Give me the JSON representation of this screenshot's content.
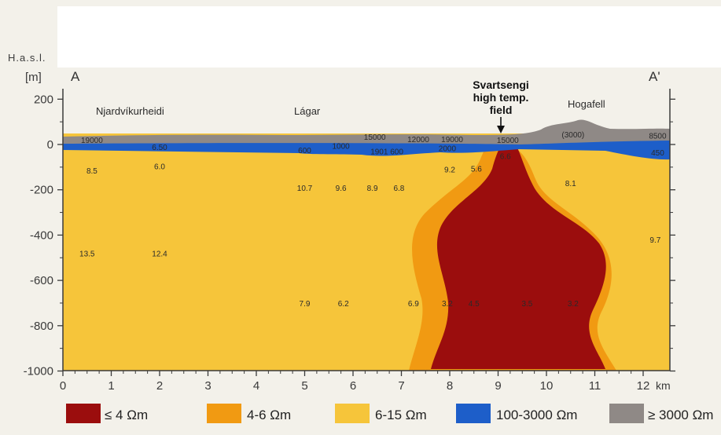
{
  "section": {
    "label_left": "A",
    "label_right": "A'",
    "y_axis_title": "H.a.s.l.",
    "y_axis_unit": "[m]",
    "x_unit": "km",
    "x_ticks": [
      "0",
      "1",
      "2",
      "3",
      "4",
      "5",
      "6",
      "7",
      "8",
      "9",
      "10",
      "11",
      "12"
    ],
    "y_ticks": [
      "200",
      "0",
      "-200",
      "-400",
      "-600",
      "-800",
      "-1000"
    ]
  },
  "annotations": {
    "place_njardvik": "Njardvíkurheidi",
    "place_lagar": "Lágar",
    "place_hogafell": "Hogafell",
    "field_line1": "Svartsengi",
    "field_line2": "high temp.",
    "field_line3": "field"
  },
  "resistivity_values": [
    {
      "text": "19000",
      "x": 0.6,
      "depth": 20
    },
    {
      "text": "6.50",
      "x": 2.0,
      "depth": -10
    },
    {
      "text": "8.5",
      "x": 0.6,
      "depth": -115
    },
    {
      "text": "6.0",
      "x": 2.0,
      "depth": -95
    },
    {
      "text": "600",
      "x": 5.0,
      "depth": -25
    },
    {
      "text": "1000",
      "x": 5.75,
      "depth": -5
    },
    {
      "text": "15000",
      "x": 6.45,
      "depth": 35
    },
    {
      "text": "1901 600",
      "x": 6.7,
      "depth": -30
    },
    {
      "text": "12000",
      "x": 7.35,
      "depth": 25
    },
    {
      "text": "19000",
      "x": 8.05,
      "depth": 25
    },
    {
      "text": "2000",
      "x": 7.95,
      "depth": -15
    },
    {
      "text": "15000",
      "x": 9.2,
      "depth": 20
    },
    {
      "text": "(3000)",
      "x": 10.55,
      "depth": 45
    },
    {
      "text": "8500",
      "x": 12.3,
      "depth": 40
    },
    {
      "text": "450",
      "x": 12.3,
      "depth": -35
    },
    {
      "text": "6.6",
      "x": 9.15,
      "depth": -50
    },
    {
      "text": "9.2",
      "x": 8.0,
      "depth": -110
    },
    {
      "text": "5.6",
      "x": 8.55,
      "depth": -105
    },
    {
      "text": "10.7",
      "x": 5.0,
      "depth": -190
    },
    {
      "text": "9.6",
      "x": 5.75,
      "depth": -190
    },
    {
      "text": "8.9",
      "x": 6.4,
      "depth": -190
    },
    {
      "text": "6.8",
      "x": 6.95,
      "depth": -190
    },
    {
      "text": "8.1",
      "x": 10.5,
      "depth": -170
    },
    {
      "text": "13.5",
      "x": 0.5,
      "depth": -480
    },
    {
      "text": "12.4",
      "x": 2.0,
      "depth": -480
    },
    {
      "text": "9.7",
      "x": 12.25,
      "depth": -420
    },
    {
      "text": "7.9",
      "x": 5.0,
      "depth": -700
    },
    {
      "text": "6.2",
      "x": 5.8,
      "depth": -700
    },
    {
      "text": "6.9",
      "x": 7.25,
      "depth": -700
    },
    {
      "text": "3.2",
      "x": 7.95,
      "depth": -700
    },
    {
      "text": "4.5",
      "x": 8.5,
      "depth": -700
    },
    {
      "text": "3.5",
      "x": 9.6,
      "depth": -700
    },
    {
      "text": "3.2",
      "x": 10.55,
      "depth": -700
    }
  ],
  "legend": [
    {
      "label": "≤ 4 Ωm",
      "color": "#9b0d0d"
    },
    {
      "label": "4-6 Ωm",
      "color": "#f19a12"
    },
    {
      "label": "6-15 Ωm",
      "color": "#f6c53a"
    },
    {
      "label": "100-3000 Ωm",
      "color": "#1d5ec9"
    },
    {
      "label": "≥ 3000 Ωm",
      "color": "#8f8986"
    }
  ],
  "colors": {
    "core": "#9b0d0d",
    "halo": "#f19a12",
    "background": "#f6c53a",
    "blue_layer": "#1d5ec9",
    "grey_layer": "#8f8986",
    "axis": "#3a3a3a"
  }
}
